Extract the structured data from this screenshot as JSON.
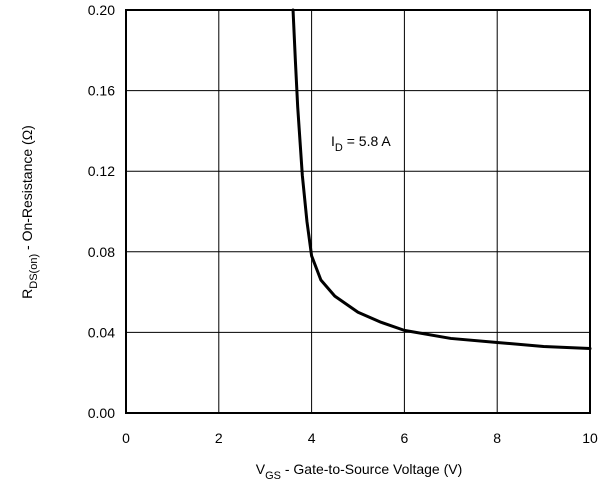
{
  "chart_data": {
    "type": "line",
    "xlabel": {
      "main": "V",
      "sub": "GS",
      "rest": " - Gate-to-Source Voltage (V)"
    },
    "ylabel": {
      "main": "R",
      "sub": "DS(on)",
      "rest": " - On-Resistance (Ω)"
    },
    "xlim": [
      0,
      10
    ],
    "ylim": [
      0,
      0.2
    ],
    "x_ticks": [
      "0",
      "2",
      "4",
      "6",
      "8",
      "10"
    ],
    "y_ticks": [
      "0.00",
      "0.04",
      "0.08",
      "0.12",
      "0.16",
      "0.20"
    ],
    "grid": true,
    "annotation": {
      "main": "I",
      "sub": "D",
      "rest": " = 5.8 A"
    },
    "series": [
      {
        "x": [
          3.6,
          3.65,
          3.7,
          3.75,
          3.8,
          3.9,
          4.0,
          4.2,
          4.5,
          5.0,
          5.5,
          6.0,
          7.0,
          8.0,
          9.0,
          10.0
        ],
        "y": [
          0.2,
          0.175,
          0.152,
          0.135,
          0.118,
          0.095,
          0.078,
          0.066,
          0.058,
          0.05,
          0.045,
          0.041,
          0.037,
          0.035,
          0.033,
          0.032
        ]
      }
    ]
  }
}
